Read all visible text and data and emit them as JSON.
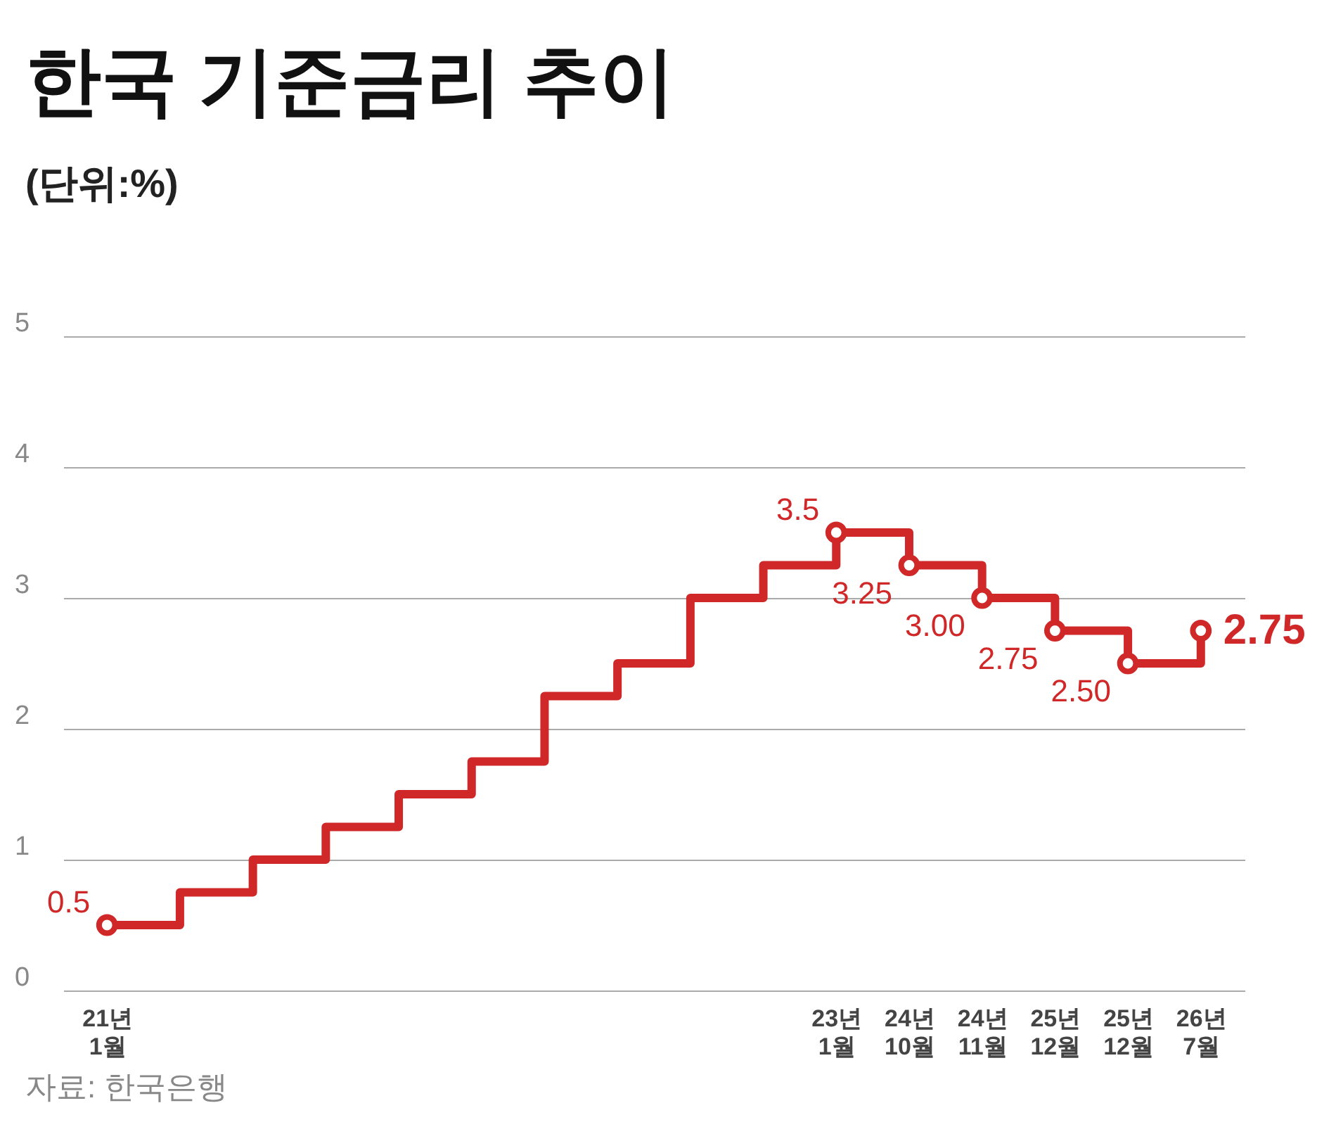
{
  "chart_data": {
    "type": "step",
    "title": "한국 기준금리 추이",
    "subtitle": "(단위:%)",
    "annotations": [
      "자료: 한국은행"
    ],
    "categories": [
      "21년 1월",
      null,
      null,
      null,
      null,
      null,
      null,
      null,
      null,
      null,
      "23년 1월",
      "24년 10월",
      "24년 11월",
      "25년 12월",
      "25년 12월",
      "26년 7월"
    ],
    "series": [
      {
        "color": "#d02828",
        "values": [
          0.5,
          0.75,
          1.0,
          1.25,
          1.5,
          1.75,
          2.25,
          2.5,
          3.0,
          3.25,
          3.5,
          3.25,
          3.0,
          2.75,
          2.5,
          2.75
        ],
        "value_labels": [
          "0.5",
          null,
          null,
          null,
          null,
          null,
          null,
          null,
          null,
          null,
          "3.5",
          "3.25",
          "3.00",
          "2.75",
          "2.50",
          "2.75"
        ]
      }
    ],
    "ylim": [
      0,
      5
    ],
    "yticks": [
      0,
      1,
      2,
      3,
      4,
      5
    ],
    "grid": "y"
  }
}
